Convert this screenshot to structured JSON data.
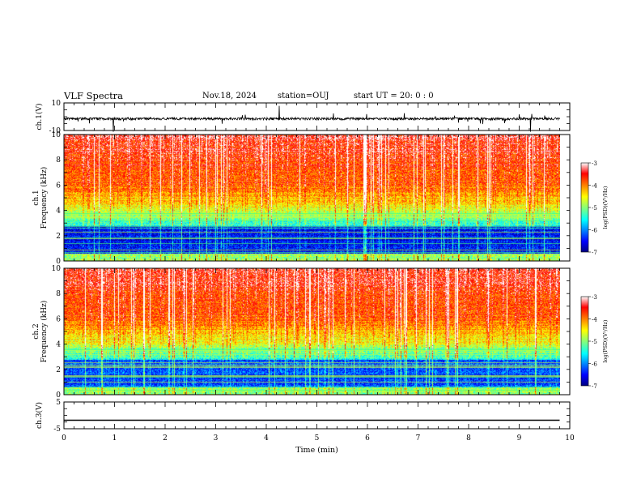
{
  "header": {
    "title": "VLF Spectra",
    "date": "Nov.18, 2024",
    "station": "station=OUJ",
    "start": "start  UT =   20: 0  : 0"
  },
  "chart_data": [
    {
      "type": "line",
      "id": "ch1-waveform",
      "ylabel": "ch.1(V)",
      "ylim": [
        -10,
        10
      ],
      "yticks": [
        "10",
        "-10"
      ],
      "xlim": [
        0,
        10
      ],
      "baseline": -1.5,
      "trace_end": 9.8
    },
    {
      "type": "heatmap",
      "id": "ch1-spectrogram",
      "ylabel": "ch.1\nFrequency (kHz)",
      "ylim": [
        0,
        10
      ],
      "yticks": [
        "0",
        "2",
        "4",
        "6",
        "8",
        "10"
      ],
      "xlim": [
        0,
        10
      ],
      "data_end": 9.8,
      "colorbar": {
        "label": "log(PSD)(V²/Hz)",
        "range": [
          -7,
          -3
        ],
        "ticks": [
          "-3",
          "-4",
          "-5",
          "-6",
          "-7"
        ]
      }
    },
    {
      "type": "heatmap",
      "id": "ch2-spectrogram",
      "ylabel": "ch.2\nFrequency (kHz)",
      "ylim": [
        0,
        10
      ],
      "yticks": [
        "0",
        "2",
        "4",
        "6",
        "8",
        "10"
      ],
      "xlim": [
        0,
        10
      ],
      "data_end": 9.8,
      "colorbar": {
        "label": "log(PSD)(V²/Hz)",
        "range": [
          -7,
          -3
        ],
        "ticks": [
          "-3",
          "-4",
          "-5",
          "-6",
          "-7"
        ]
      }
    },
    {
      "type": "line",
      "id": "ch3-waveform",
      "ylabel": "ch.3(V)",
      "ylim": [
        -5,
        5
      ],
      "yticks": [
        "5",
        "-5"
      ],
      "xlim": [
        0,
        10
      ],
      "x": [
        0,
        9.8
      ],
      "y": [
        -1.8,
        -1.8
      ],
      "xlabel": "Time (min)",
      "xticks": [
        "0",
        "1",
        "2",
        "3",
        "4",
        "5",
        "6",
        "7",
        "8",
        "9",
        "10"
      ]
    }
  ]
}
